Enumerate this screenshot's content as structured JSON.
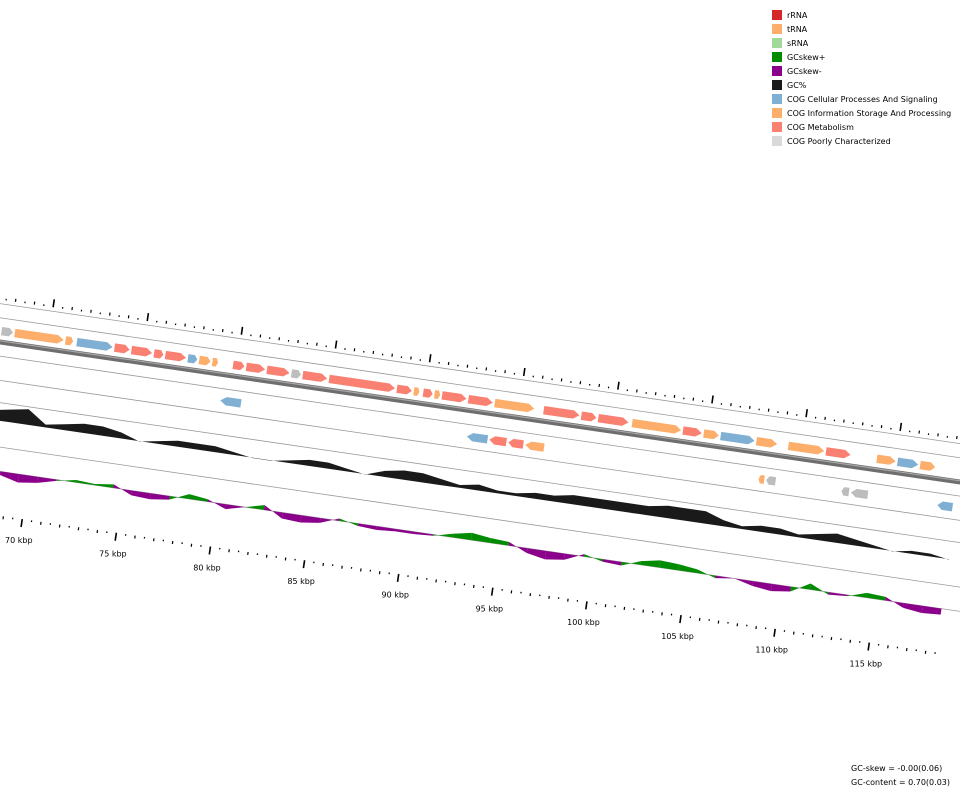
{
  "legend": [
    {
      "label": "rRNA",
      "color": "#d62728"
    },
    {
      "label": "tRNA",
      "color": "#fdae6b"
    },
    {
      "label": "sRNA",
      "color": "#a1d99b"
    },
    {
      "label": "GCskew+",
      "color": "#008b00"
    },
    {
      "label": "GCskew-",
      "color": "#8b008b"
    },
    {
      "label": "GC%",
      "color": "#1a1a1a"
    },
    {
      "label": "COG Cellular Processes And Signaling",
      "color": "#7fb0d4"
    },
    {
      "label": "COG Information Storage And Processing",
      "color": "#fdae6b"
    },
    {
      "label": "COG Metabolism",
      "color": "#fa8072"
    },
    {
      "label": "COG Poorly Characterized",
      "color": "#d9d9d9"
    }
  ],
  "stats": {
    "gc_skew": "GC-skew = -0.00(0.06)",
    "gc_content": "GC-content = 0.70(0.03)"
  },
  "scale": {
    "unit": "kbp",
    "labels": [
      "70 kbp",
      "75 kbp",
      "80 kbp",
      "85 kbp",
      "90 kbp",
      "95 kbp",
      "100 kbp",
      "105 kbp",
      "110 kbp",
      "115 kbp"
    ],
    "label_values_kbp": [
      70,
      75,
      80,
      85,
      90,
      95,
      100,
      105,
      110,
      115
    ],
    "visible_range_kbp": [
      67.5,
      118.5
    ]
  },
  "tracks": {
    "forward_genes": [
      {
        "start": 67.5,
        "end": 68.1,
        "cog": "poorly"
      },
      {
        "start": 68.2,
        "end": 70.8,
        "cog": "info"
      },
      {
        "start": 70.9,
        "end": 71.3,
        "cog": "info"
      },
      {
        "start": 71.5,
        "end": 73.4,
        "cog": "cellular"
      },
      {
        "start": 73.5,
        "end": 74.3,
        "cog": "metabolism"
      },
      {
        "start": 74.4,
        "end": 75.5,
        "cog": "metabolism"
      },
      {
        "start": 75.6,
        "end": 76.1,
        "cog": "metabolism"
      },
      {
        "start": 76.2,
        "end": 77.3,
        "cog": "metabolism"
      },
      {
        "start": 77.4,
        "end": 77.9,
        "cog": "cellular"
      },
      {
        "start": 78.0,
        "end": 78.6,
        "cog": "info"
      },
      {
        "start": 78.7,
        "end": 79.0,
        "cog": "info"
      },
      {
        "start": 79.8,
        "end": 80.4,
        "cog": "metabolism"
      },
      {
        "start": 80.5,
        "end": 81.5,
        "cog": "metabolism"
      },
      {
        "start": 81.6,
        "end": 82.8,
        "cog": "metabolism"
      },
      {
        "start": 82.9,
        "end": 83.4,
        "cog": "poorly"
      },
      {
        "start": 83.5,
        "end": 84.8,
        "cog": "metabolism"
      },
      {
        "start": 84.9,
        "end": 88.4,
        "cog": "metabolism"
      },
      {
        "start": 88.5,
        "end": 89.3,
        "cog": "metabolism"
      },
      {
        "start": 89.4,
        "end": 89.7,
        "cog": "info"
      },
      {
        "start": 89.9,
        "end": 90.4,
        "cog": "metabolism"
      },
      {
        "start": 90.5,
        "end": 90.8,
        "cog": "info"
      },
      {
        "start": 90.9,
        "end": 92.2,
        "cog": "metabolism"
      },
      {
        "start": 92.3,
        "end": 93.6,
        "cog": "metabolism"
      },
      {
        "start": 93.7,
        "end": 95.8,
        "cog": "info"
      },
      {
        "start": 96.3,
        "end": 98.2,
        "cog": "metabolism"
      },
      {
        "start": 98.3,
        "end": 99.1,
        "cog": "metabolism"
      },
      {
        "start": 99.2,
        "end": 100.8,
        "cog": "metabolism"
      },
      {
        "start": 101.0,
        "end": 103.6,
        "cog": "info"
      },
      {
        "start": 103.7,
        "end": 104.7,
        "cog": "metabolism"
      },
      {
        "start": 104.8,
        "end": 105.6,
        "cog": "info"
      },
      {
        "start": 105.7,
        "end": 107.5,
        "cog": "cellular"
      },
      {
        "start": 107.6,
        "end": 108.7,
        "cog": "info"
      },
      {
        "start": 109.3,
        "end": 111.2,
        "cog": "info"
      },
      {
        "start": 111.3,
        "end": 112.6,
        "cog": "metabolism"
      },
      {
        "start": 114.0,
        "end": 115.0,
        "cog": "info"
      },
      {
        "start": 115.1,
        "end": 116.2,
        "cog": "cellular"
      },
      {
        "start": 116.3,
        "end": 117.1,
        "cog": "info"
      }
    ],
    "reverse_genes": [
      {
        "start": 79.4,
        "end": 80.5,
        "cog": "cellular"
      },
      {
        "start": 92.5,
        "end": 93.6,
        "cog": "cellular"
      },
      {
        "start": 93.7,
        "end": 94.6,
        "cog": "metabolism"
      },
      {
        "start": 94.7,
        "end": 95.5,
        "cog": "metabolism"
      },
      {
        "start": 95.6,
        "end": 96.6,
        "cog": "info"
      },
      {
        "start": 108.0,
        "end": 108.3,
        "cog": "info"
      },
      {
        "start": 108.4,
        "end": 108.9,
        "cog": "poorly"
      },
      {
        "start": 112.4,
        "end": 112.8,
        "cog": "poorly"
      },
      {
        "start": 112.9,
        "end": 113.8,
        "cog": "poorly"
      },
      {
        "start": 117.5,
        "end": 118.3,
        "cog": "cellular"
      }
    ],
    "gc_percent": [
      [
        67.5,
        0.7
      ],
      [
        68.5,
        0.71
      ],
      [
        69.5,
        0.72
      ],
      [
        70.5,
        0.68
      ],
      [
        71.5,
        0.69
      ],
      [
        72.5,
        0.7
      ],
      [
        73.5,
        0.7
      ],
      [
        74.5,
        0.69
      ],
      [
        75.5,
        0.67
      ],
      [
        76.5,
        0.68
      ],
      [
        77.5,
        0.69
      ],
      [
        78.5,
        0.69
      ],
      [
        79.5,
        0.69
      ],
      [
        80.5,
        0.68
      ],
      [
        81.5,
        0.67
      ],
      [
        82.5,
        0.67
      ],
      [
        83.5,
        0.68
      ],
      [
        84.5,
        0.69
      ],
      [
        85.5,
        0.69
      ],
      [
        86.5,
        0.68
      ],
      [
        87.5,
        0.67
      ],
      [
        88.5,
        0.69
      ],
      [
        89.5,
        0.7
      ],
      [
        90.5,
        0.7
      ],
      [
        91.5,
        0.69
      ],
      [
        92.5,
        0.68
      ],
      [
        93.5,
        0.69
      ],
      [
        94.5,
        0.68
      ],
      [
        95.5,
        0.68
      ],
      [
        96.5,
        0.69
      ],
      [
        97.5,
        0.69
      ],
      [
        98.5,
        0.7
      ],
      [
        99.5,
        0.7
      ],
      [
        100.5,
        0.7
      ],
      [
        101.5,
        0.7
      ],
      [
        102.5,
        0.7
      ],
      [
        103.5,
        0.71
      ],
      [
        104.5,
        0.71
      ],
      [
        105.5,
        0.71
      ],
      [
        106.5,
        0.69
      ],
      [
        107.5,
        0.68
      ],
      [
        108.5,
        0.69
      ],
      [
        109.5,
        0.69
      ],
      [
        110.5,
        0.68
      ],
      [
        111.5,
        0.69
      ],
      [
        112.5,
        0.7
      ],
      [
        113.5,
        0.69
      ],
      [
        114.5,
        0.68
      ],
      [
        115.5,
        0.67
      ],
      [
        116.5,
        0.68
      ],
      [
        117.5,
        0.68
      ],
      [
        118.5,
        0.67
      ]
    ],
    "gc_skew": [
      [
        67.5,
        0.01
      ],
      [
        68.5,
        -0.03
      ],
      [
        69.5,
        -0.07
      ],
      [
        70.5,
        -0.05
      ],
      [
        71.5,
        -0.01
      ],
      [
        72.5,
        0.02
      ],
      [
        73.5,
        0.01
      ],
      [
        74.5,
        0.03
      ],
      [
        75.5,
        -0.04
      ],
      [
        76.5,
        -0.05
      ],
      [
        77.5,
        -0.03
      ],
      [
        78.5,
        0.04
      ],
      [
        79.5,
        0.02
      ],
      [
        80.5,
        -0.04
      ],
      [
        81.5,
        0.0
      ],
      [
        82.5,
        0.04
      ],
      [
        83.5,
        -0.05
      ],
      [
        84.5,
        -0.06
      ],
      [
        85.5,
        -0.04
      ],
      [
        86.5,
        0.02
      ],
      [
        87.5,
        -0.02
      ],
      [
        88.5,
        -0.03
      ],
      [
        89.5,
        -0.02
      ],
      [
        90.5,
        -0.02
      ],
      [
        91.5,
        -0.01
      ],
      [
        92.5,
        0.03
      ],
      [
        93.5,
        0.06
      ],
      [
        94.5,
        0.04
      ],
      [
        95.5,
        0.03
      ],
      [
        96.5,
        -0.04
      ],
      [
        97.5,
        -0.07
      ],
      [
        98.5,
        -0.05
      ],
      [
        99.5,
        0.02
      ],
      [
        100.5,
        -0.02
      ],
      [
        101.5,
        -0.03
      ],
      [
        102.5,
        0.03
      ],
      [
        103.5,
        0.06
      ],
      [
        104.5,
        0.05
      ],
      [
        105.5,
        0.03
      ],
      [
        106.5,
        -0.02
      ],
      [
        107.5,
        0.0
      ],
      [
        108.5,
        -0.04
      ],
      [
        109.5,
        -0.06
      ],
      [
        110.5,
        -0.04
      ],
      [
        111.5,
        0.05
      ],
      [
        112.5,
        -0.02
      ],
      [
        113.5,
        -0.01
      ],
      [
        114.5,
        0.04
      ],
      [
        115.5,
        0.03
      ],
      [
        116.5,
        -0.04
      ],
      [
        117.5,
        -0.06
      ],
      [
        118.5,
        -0.05
      ]
    ]
  }
}
